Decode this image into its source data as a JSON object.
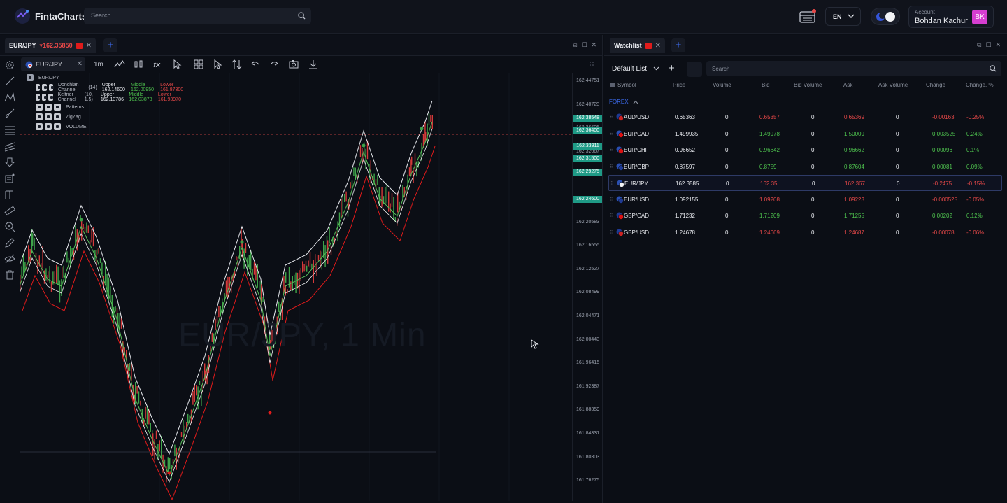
{
  "app": {
    "name": "FintaCharts",
    "search_placeholder": "Search"
  },
  "header": {
    "language": "EN",
    "account_label": "Account",
    "account_name": "Bohdan Kachur",
    "avatar_initials": "BK"
  },
  "chart_panel": {
    "tab_symbol": "EUR/JPY",
    "tab_price": "▾162.35850",
    "symbol_chip": "EUR/JPY",
    "timeframe": "1m",
    "indicator_group": "EUR/JPY",
    "indicators": [
      {
        "name": "Donchian Channel",
        "params": "(14)",
        "upper": "Upper 162.14600",
        "middle": "Middle 162.00950",
        "lower": "Lower 161.87300"
      },
      {
        "name": "Keltner Channel",
        "params": "(10, 1.5)",
        "upper": "Upper 162.13786",
        "middle": "Middle 162.03878",
        "lower": "Lower 161.93970"
      },
      {
        "name": "Patterns",
        "params": "",
        "upper": "",
        "middle": "",
        "lower": ""
      },
      {
        "name": "ZigZag",
        "params": "",
        "upper": "",
        "middle": "",
        "lower": ""
      },
      {
        "name": "VOLUME",
        "params": "",
        "upper": "",
        "middle": "",
        "lower": ""
      }
    ],
    "watermark": "EUR/JPY, 1 Min",
    "price_ticks": [
      "162.44751",
      "162.40723",
      "162.36695",
      "162.32667",
      "162.28639",
      "162.24611",
      "162.20583",
      "162.16555",
      "162.12527",
      "162.08499",
      "162.04471",
      "162.00443",
      "161.96415",
      "161.92387",
      "161.88359",
      "161.84331",
      "161.80303",
      "161.76275"
    ],
    "price_tags": [
      "162.38548",
      "162.36400",
      "162.33911",
      "162.31500",
      "162.29275",
      "162.24600"
    ]
  },
  "watchlist": {
    "tab": "Watchlist",
    "list_name": "Default List",
    "more": "···",
    "search_placeholder": "Search",
    "columns": [
      "Symbol",
      "Price",
      "Volume",
      "Bid",
      "Bid Volume",
      "Ask",
      "Ask Volume",
      "Change",
      "Change, %"
    ],
    "group": "FOREX",
    "rows": [
      {
        "symbol": "AUD/USD",
        "price": "0.65363",
        "volume": "0",
        "bid": "0.65357",
        "bid_volume": "0",
        "ask": "0.65369",
        "ask_volume": "0",
        "change": "-0.00163",
        "change_pct": "-0.25%",
        "dir": "neg"
      },
      {
        "symbol": "EUR/CAD",
        "price": "1.499935",
        "volume": "0",
        "bid": "1.49978",
        "bid_volume": "0",
        "ask": "1.50009",
        "ask_volume": "0",
        "change": "0.003525",
        "change_pct": "0.24%",
        "dir": "pos"
      },
      {
        "symbol": "EUR/CHF",
        "price": "0.96652",
        "volume": "0",
        "bid": "0.96642",
        "bid_volume": "0",
        "ask": "0.96662",
        "ask_volume": "0",
        "change": "0.00096",
        "change_pct": "0.1%",
        "dir": "pos"
      },
      {
        "symbol": "EUR/GBP",
        "price": "0.87597",
        "volume": "0",
        "bid": "0.8759",
        "bid_volume": "0",
        "ask": "0.87604",
        "ask_volume": "0",
        "change": "0.00081",
        "change_pct": "0.09%",
        "dir": "pos"
      },
      {
        "symbol": "EUR/JPY",
        "price": "162.3585",
        "volume": "0",
        "bid": "162.35",
        "bid_volume": "0",
        "ask": "162.367",
        "ask_volume": "0",
        "change": "-0.2475",
        "change_pct": "-0.15%",
        "dir": "neg"
      },
      {
        "symbol": "EUR/USD",
        "price": "1.092155",
        "volume": "0",
        "bid": "1.09208",
        "bid_volume": "0",
        "ask": "1.09223",
        "ask_volume": "0",
        "change": "-0.000525",
        "change_pct": "-0.05%",
        "dir": "neg"
      },
      {
        "symbol": "GBP/CAD",
        "price": "1.71232",
        "volume": "0",
        "bid": "1.71209",
        "bid_volume": "0",
        "ask": "1.71255",
        "ask_volume": "0",
        "change": "0.00202",
        "change_pct": "0.12%",
        "dir": "pos"
      },
      {
        "symbol": "GBP/USD",
        "price": "1.24678",
        "volume": "0",
        "bid": "1.24669",
        "bid_volume": "0",
        "ask": "1.24687",
        "ask_volume": "0",
        "change": "-0.00078",
        "change_pct": "-0.06%",
        "dir": "neg"
      }
    ]
  }
}
